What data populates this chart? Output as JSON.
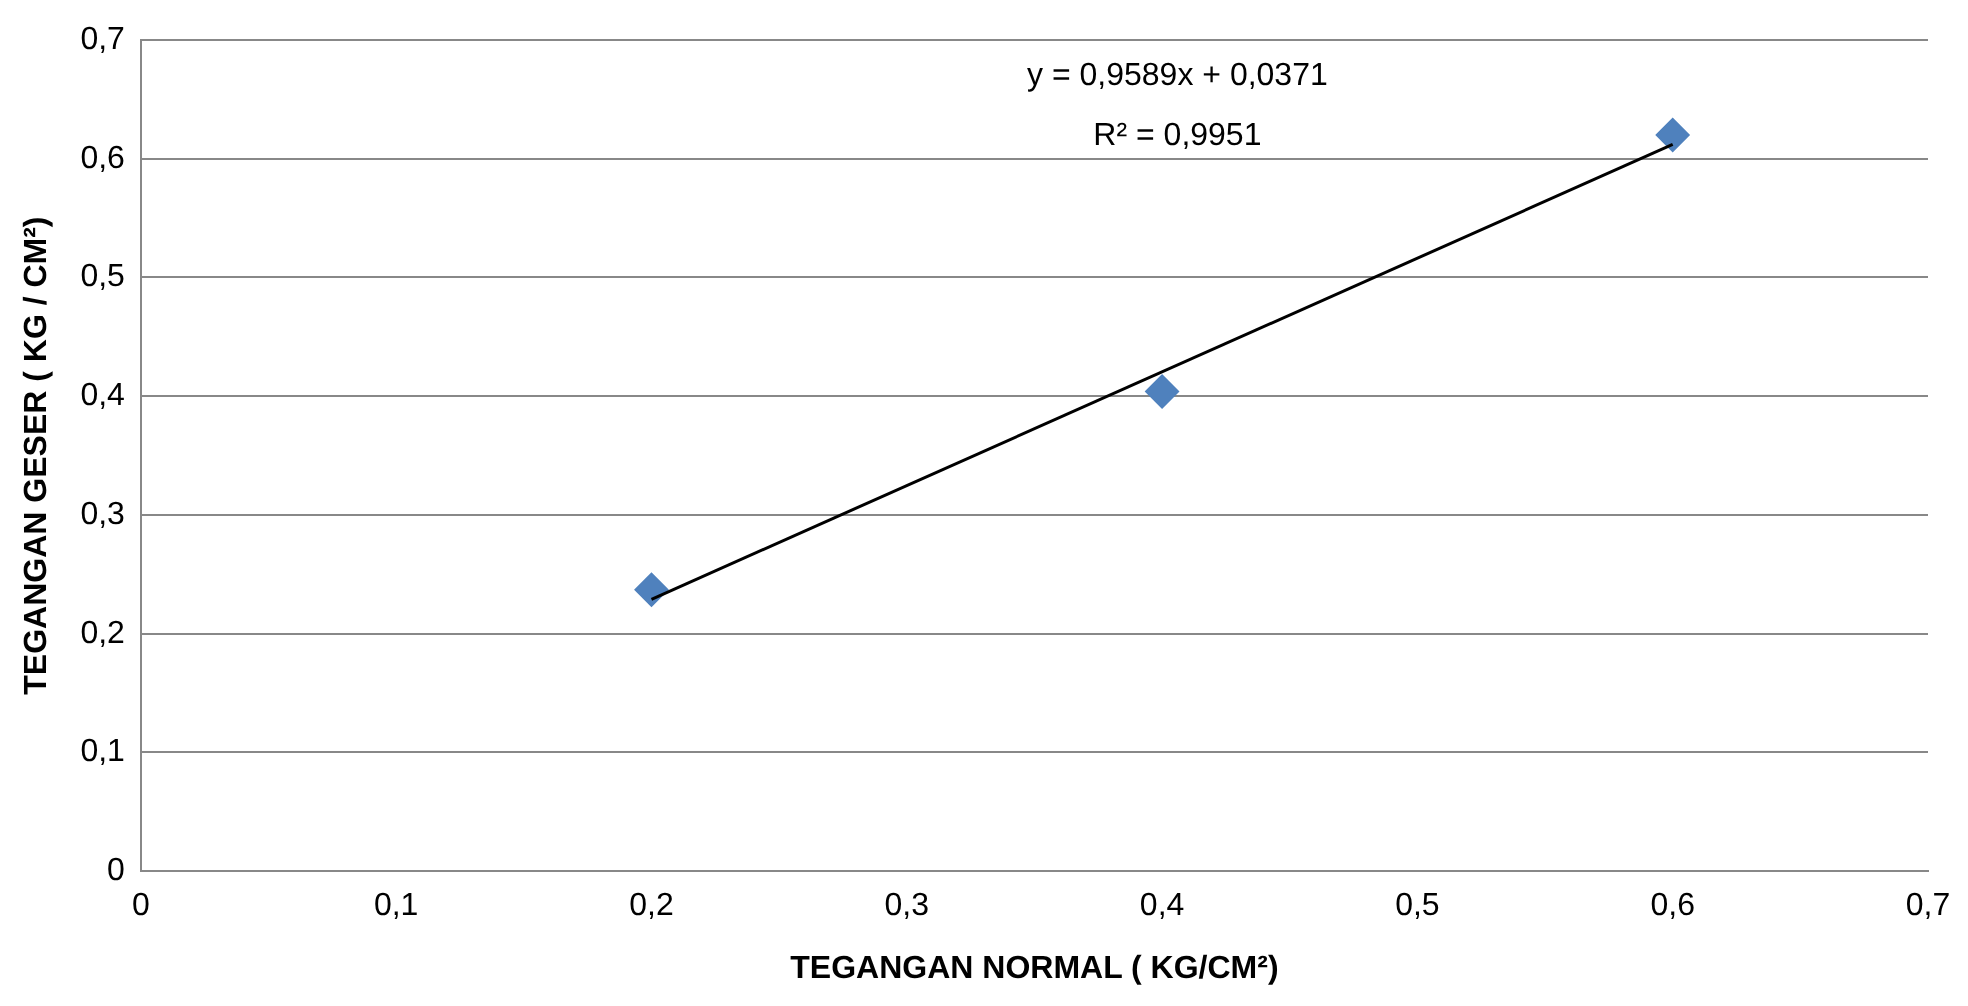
{
  "chart_data": {
    "type": "scatter",
    "xlabel": "TEGANGAN NORMAL ( KG/CM²)",
    "ylabel": "TEGANGAN GESER ( KG / CM²)",
    "x": [
      0.2,
      0.4,
      0.6
    ],
    "series": [
      {
        "color": "#4f81bd",
        "values": [
          0.237,
          0.404,
          0.62
        ],
        "marker": "diamond"
      },
      {
        "type": "line",
        "color": "#000000",
        "x": [
          0.2,
          0.6
        ],
        "values": [
          0.229,
          0.612
        ],
        "marker": "none",
        "line_style": "solid"
      }
    ],
    "xlim": [
      0,
      0.7
    ],
    "ylim": [
      0,
      0.7
    ],
    "xticks": [
      0,
      {
        "value": 0.1,
        "label": "0,1"
      },
      {
        "value": 0.2,
        "label": "0,2"
      },
      {
        "value": 0.3,
        "label": "0,3"
      },
      {
        "value": 0.4,
        "label": "0,4"
      },
      {
        "value": 0.5,
        "label": "0,5"
      },
      {
        "value": 0.6,
        "label": "0,6"
      },
      {
        "value": 0.7,
        "label": "0,7"
      }
    ],
    "yticks": [
      0,
      {
        "value": 0.1,
        "label": "0,1"
      },
      {
        "value": 0.2,
        "label": "0,2"
      },
      {
        "value": 0.3,
        "label": "0,3"
      },
      {
        "value": 0.4,
        "label": "0,4"
      },
      {
        "value": 0.5,
        "label": "0,5"
      },
      {
        "value": 0.6,
        "label": "0,6"
      },
      {
        "value": 0.7,
        "label": "0,7"
      }
    ],
    "grid": "y",
    "legend": false,
    "annotations": [
      "y = 0,9589x + 0,0371",
      "R² = 0,9951"
    ]
  }
}
